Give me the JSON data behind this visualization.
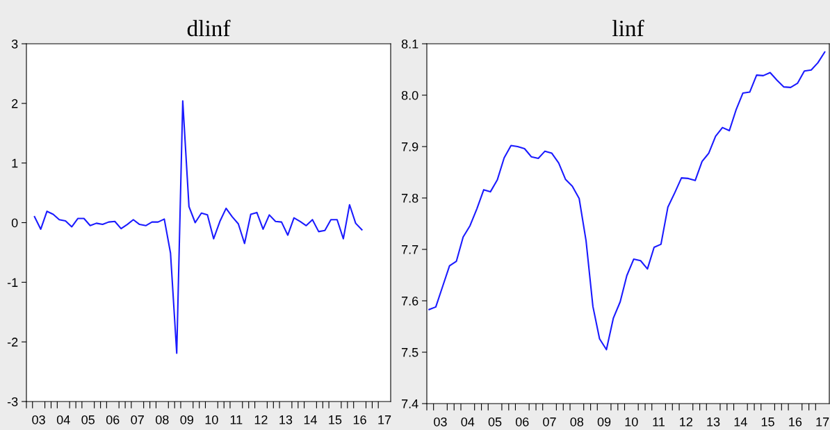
{
  "chart_data": [
    {
      "type": "line",
      "title": "dlinf",
      "color": "#1a1aff",
      "x": [
        "2003-05",
        "2003-08",
        "2003-11",
        "2004-02",
        "2004-05",
        "2004-08",
        "2004-11",
        "2005-02",
        "2005-05",
        "2005-08",
        "2005-11",
        "2006-02",
        "2006-05",
        "2006-08",
        "2006-11",
        "2007-02",
        "2007-05",
        "2007-08",
        "2007-11",
        "2008-02",
        "2008-05",
        "2008-08",
        "2008-11",
        "2009-02",
        "2009-05",
        "2009-08",
        "2009-11",
        "2010-02",
        "2010-05",
        "2010-08",
        "2010-11",
        "2011-02",
        "2011-05",
        "2011-08",
        "2011-11",
        "2012-02",
        "2012-05",
        "2012-08",
        "2012-11",
        "2013-02",
        "2013-05",
        "2013-08",
        "2013-11",
        "2014-02",
        "2014-05",
        "2014-08",
        "2014-11",
        "2015-02",
        "2015-05",
        "2015-08",
        "2015-11",
        "2016-02",
        "2016-05",
        "2016-08"
      ],
      "values": [
        0.1,
        -0.11,
        0.19,
        0.14,
        0.05,
        0.03,
        -0.07,
        0.07,
        0.07,
        -0.05,
        -0.01,
        -0.03,
        0.01,
        0.02,
        -0.1,
        -0.03,
        0.05,
        -0.03,
        -0.05,
        0.01,
        0.01,
        0.06,
        -0.51,
        -2.19,
        2.04,
        0.27,
        0.0,
        0.16,
        0.13,
        -0.27,
        0.02,
        0.24,
        0.1,
        -0.02,
        -0.35,
        0.14,
        0.17,
        -0.11,
        0.13,
        0.02,
        0.01,
        -0.21,
        0.08,
        0.02,
        -0.05,
        0.05,
        -0.15,
        -0.13,
        0.05,
        0.05,
        -0.27,
        0.3,
        -0.01,
        -0.12
      ],
      "xlim": [
        "2003-01",
        "2017-10"
      ],
      "ylim": [
        -3,
        3
      ],
      "yticks": [
        -3,
        -2,
        -1,
        0,
        1,
        2,
        3
      ],
      "xticks": [
        {
          "value": "2003-07",
          "label": "03"
        },
        {
          "value": "2004-07",
          "label": "04"
        },
        {
          "value": "2005-07",
          "label": "05"
        },
        {
          "value": "2006-07",
          "label": "06"
        },
        {
          "value": "2007-07",
          "label": "07"
        },
        {
          "value": "2008-07",
          "label": "08"
        },
        {
          "value": "2009-07",
          "label": "09"
        },
        {
          "value": "2010-07",
          "label": "10"
        },
        {
          "value": "2011-07",
          "label": "11"
        },
        {
          "value": "2012-07",
          "label": "12"
        },
        {
          "value": "2013-07",
          "label": "13"
        },
        {
          "value": "2014-07",
          "label": "14"
        },
        {
          "value": "2015-07",
          "label": "15"
        },
        {
          "value": "2016-07",
          "label": "16"
        },
        {
          "value": "2017-07",
          "label": "17"
        },
        {
          "value": "2003-01",
          "label": null
        },
        {
          "value": "2003-04",
          "label": null
        },
        {
          "value": "2003-10",
          "label": null
        },
        {
          "value": "2004-01",
          "label": null
        },
        {
          "value": "2004-04",
          "label": null
        },
        {
          "value": "2004-10",
          "label": null
        },
        {
          "value": "2005-01",
          "label": null
        },
        {
          "value": "2005-04",
          "label": null
        },
        {
          "value": "2005-10",
          "label": null
        },
        {
          "value": "2006-01",
          "label": null
        },
        {
          "value": "2006-04",
          "label": null
        },
        {
          "value": "2006-10",
          "label": null
        },
        {
          "value": "2007-01",
          "label": null
        },
        {
          "value": "2007-04",
          "label": null
        },
        {
          "value": "2007-10",
          "label": null
        },
        {
          "value": "2008-01",
          "label": null
        },
        {
          "value": "2008-04",
          "label": null
        },
        {
          "value": "2008-10",
          "label": null
        },
        {
          "value": "2009-01",
          "label": null
        },
        {
          "value": "2009-04",
          "label": null
        },
        {
          "value": "2009-10",
          "label": null
        },
        {
          "value": "2010-01",
          "label": null
        },
        {
          "value": "2010-04",
          "label": null
        },
        {
          "value": "2010-10",
          "label": null
        },
        {
          "value": "2011-01",
          "label": null
        },
        {
          "value": "2011-04",
          "label": null
        },
        {
          "value": "2011-10",
          "label": null
        },
        {
          "value": "2012-01",
          "label": null
        },
        {
          "value": "2012-04",
          "label": null
        },
        {
          "value": "2012-10",
          "label": null
        },
        {
          "value": "2013-01",
          "label": null
        },
        {
          "value": "2013-04",
          "label": null
        },
        {
          "value": "2013-10",
          "label": null
        },
        {
          "value": "2014-01",
          "label": null
        },
        {
          "value": "2014-04",
          "label": null
        },
        {
          "value": "2014-10",
          "label": null
        },
        {
          "value": "2015-01",
          "label": null
        },
        {
          "value": "2015-04",
          "label": null
        },
        {
          "value": "2015-10",
          "label": null
        },
        {
          "value": "2016-01",
          "label": null
        },
        {
          "value": "2016-04",
          "label": null
        },
        {
          "value": "2016-10",
          "label": null
        },
        {
          "value": "2017-01",
          "label": null
        },
        {
          "value": "2017-04",
          "label": null
        }
      ]
    },
    {
      "type": "line",
      "title": "linf",
      "color": "#1a1aff",
      "x": [
        "2003-02",
        "2003-05",
        "2003-08",
        "2003-11",
        "2004-02",
        "2004-05",
        "2004-08",
        "2004-11",
        "2005-02",
        "2005-05",
        "2005-08",
        "2005-11",
        "2006-02",
        "2006-05",
        "2006-08",
        "2006-11",
        "2007-02",
        "2007-05",
        "2007-08",
        "2007-11",
        "2008-02",
        "2008-05",
        "2008-08",
        "2008-11",
        "2009-02",
        "2009-05",
        "2009-08",
        "2009-11",
        "2010-02",
        "2010-05",
        "2010-08",
        "2010-11",
        "2011-02",
        "2011-05",
        "2011-08",
        "2011-11",
        "2012-02",
        "2012-05",
        "2012-08",
        "2012-11",
        "2013-02",
        "2013-05",
        "2013-08",
        "2013-11",
        "2014-02",
        "2014-05",
        "2014-08",
        "2014-11",
        "2015-02",
        "2015-05",
        "2015-08",
        "2015-11",
        "2016-02",
        "2016-05",
        "2016-08",
        "2016-11",
        "2017-02",
        "2017-05",
        "2017-08"
      ],
      "values": [
        7.583,
        7.588,
        7.628,
        7.668,
        7.677,
        7.724,
        7.746,
        7.779,
        7.816,
        7.812,
        7.835,
        7.878,
        7.902,
        7.9,
        7.896,
        7.88,
        7.877,
        7.891,
        7.887,
        7.868,
        7.836,
        7.823,
        7.799,
        7.717,
        7.589,
        7.526,
        7.505,
        7.566,
        7.598,
        7.649,
        7.681,
        7.678,
        7.662,
        7.704,
        7.71,
        7.782,
        7.81,
        7.839,
        7.838,
        7.834,
        7.871,
        7.887,
        7.92,
        7.937,
        7.931,
        7.971,
        8.004,
        8.006,
        8.039,
        8.038,
        8.044,
        8.029,
        8.016,
        8.015,
        8.023,
        8.047,
        8.049,
        8.063,
        8.084
      ],
      "xlim": [
        "2003-01",
        "2017-10"
      ],
      "ylim": [
        7.4,
        8.1
      ],
      "yticks": [
        7.4,
        7.5,
        7.6,
        7.7,
        7.8,
        7.9,
        {
          "value": 8.0,
          "label": "8.0"
        },
        8.1
      ],
      "xticks": [
        {
          "value": "2003-07",
          "label": "03"
        },
        {
          "value": "2004-07",
          "label": "04"
        },
        {
          "value": "2005-07",
          "label": "05"
        },
        {
          "value": "2006-07",
          "label": "06"
        },
        {
          "value": "2007-07",
          "label": "07"
        },
        {
          "value": "2008-07",
          "label": "08"
        },
        {
          "value": "2009-07",
          "label": "09"
        },
        {
          "value": "2010-07",
          "label": "10"
        },
        {
          "value": "2011-07",
          "label": "11"
        },
        {
          "value": "2012-07",
          "label": "12"
        },
        {
          "value": "2013-07",
          "label": "13"
        },
        {
          "value": "2014-07",
          "label": "14"
        },
        {
          "value": "2015-07",
          "label": "15"
        },
        {
          "value": "2016-07",
          "label": "16"
        },
        {
          "value": "2017-07",
          "label": "17"
        },
        {
          "value": "2003-01",
          "label": null
        },
        {
          "value": "2003-04",
          "label": null
        },
        {
          "value": "2003-10",
          "label": null
        },
        {
          "value": "2004-01",
          "label": null
        },
        {
          "value": "2004-04",
          "label": null
        },
        {
          "value": "2004-10",
          "label": null
        },
        {
          "value": "2005-01",
          "label": null
        },
        {
          "value": "2005-04",
          "label": null
        },
        {
          "value": "2005-10",
          "label": null
        },
        {
          "value": "2006-01",
          "label": null
        },
        {
          "value": "2006-04",
          "label": null
        },
        {
          "value": "2006-10",
          "label": null
        },
        {
          "value": "2007-01",
          "label": null
        },
        {
          "value": "2007-04",
          "label": null
        },
        {
          "value": "2007-10",
          "label": null
        },
        {
          "value": "2008-01",
          "label": null
        },
        {
          "value": "2008-04",
          "label": null
        },
        {
          "value": "2008-10",
          "label": null
        },
        {
          "value": "2009-01",
          "label": null
        },
        {
          "value": "2009-04",
          "label": null
        },
        {
          "value": "2009-10",
          "label": null
        },
        {
          "value": "2010-01",
          "label": null
        },
        {
          "value": "2010-04",
          "label": null
        },
        {
          "value": "2010-10",
          "label": null
        },
        {
          "value": "2011-01",
          "label": null
        },
        {
          "value": "2011-04",
          "label": null
        },
        {
          "value": "2011-10",
          "label": null
        },
        {
          "value": "2012-01",
          "label": null
        },
        {
          "value": "2012-04",
          "label": null
        },
        {
          "value": "2012-10",
          "label": null
        },
        {
          "value": "2013-01",
          "label": null
        },
        {
          "value": "2013-04",
          "label": null
        },
        {
          "value": "2013-10",
          "label": null
        },
        {
          "value": "2014-01",
          "label": null
        },
        {
          "value": "2014-04",
          "label": null
        },
        {
          "value": "2014-10",
          "label": null
        },
        {
          "value": "2015-01",
          "label": null
        },
        {
          "value": "2015-04",
          "label": null
        },
        {
          "value": "2015-10",
          "label": null
        },
        {
          "value": "2016-01",
          "label": null
        },
        {
          "value": "2016-04",
          "label": null
        },
        {
          "value": "2016-10",
          "label": null
        },
        {
          "value": "2017-01",
          "label": null
        },
        {
          "value": "2017-04",
          "label": null
        }
      ]
    }
  ]
}
